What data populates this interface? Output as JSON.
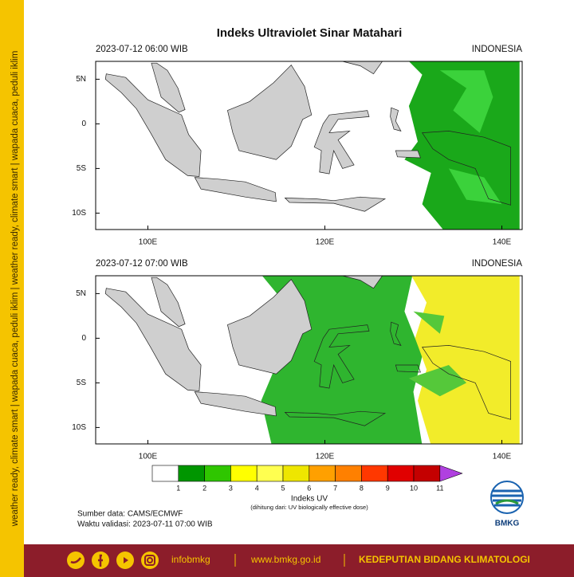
{
  "side_text": "weather ready, climate smart | wapada cuaca, peduli iklim | weather ready, climate smart | wapada cuaca, peduli iklim",
  "title": "Indeks Ultraviolet Sinar Matahari",
  "panels": [
    {
      "time": "2023-07-12  06:00 WIB",
      "region": "INDONESIA"
    },
    {
      "time": "2023-07-12  07:00 WIB",
      "region": "INDONESIA"
    }
  ],
  "lat_labels": [
    "5N",
    "0",
    "5S",
    "10S"
  ],
  "lon_labels": [
    "100E",
    "120E",
    "140E"
  ],
  "colorbar": {
    "title": "Indeks UV",
    "note": "(dihitung dari: UV biologically effective dose)",
    "levels": [
      1,
      2,
      3,
      4,
      5,
      6,
      7,
      8,
      9,
      10,
      11
    ],
    "colors": [
      "#ffffff",
      "#009600",
      "#2fc600",
      "#ffff00",
      "#ffff50",
      "#eee600",
      "#ffa000",
      "#ff8000",
      "#ff3800",
      "#e00000",
      "#c40000"
    ],
    "over_color": "#b040e0"
  },
  "source": "Sumber data: CAMS/ECMWF",
  "validity": "Waktu validasi: 2023-07-11 07:00 WIB",
  "logo": "BMKG",
  "footer": {
    "handle": "infobmkg",
    "website": "www.bmkg.go.id",
    "department": "KEDEPUTIAN BIDANG KLIMATOLOGI"
  }
}
